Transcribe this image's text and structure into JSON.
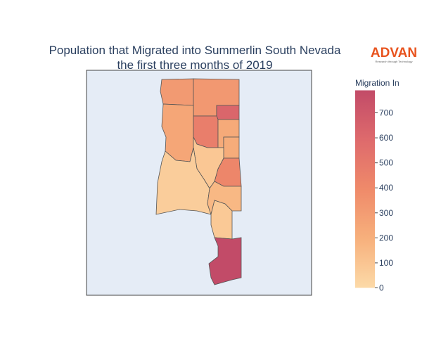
{
  "chart_data": {
    "type": "choropleth",
    "title": [
      "Population that Migrated into Summerlin South Nevada",
      "the first three months of 2019"
    ],
    "values": [
      310,
      320,
      620,
      250,
      470,
      230,
      220,
      420,
      90,
      60,
      160,
      80,
      790
    ],
    "colorscale": [
      "#fcdaa8",
      "#f7b07c",
      "#ef8a6a",
      "#de6a6c",
      "#c24b68"
    ],
    "zlim": [
      0,
      790
    ],
    "colorbar_title": "Migration In",
    "zticks": [
      0,
      100,
      200,
      300,
      400,
      500,
      600,
      700
    ],
    "logo": {
      "name": "ADVAN",
      "tagline": "Research through Technology"
    }
  }
}
